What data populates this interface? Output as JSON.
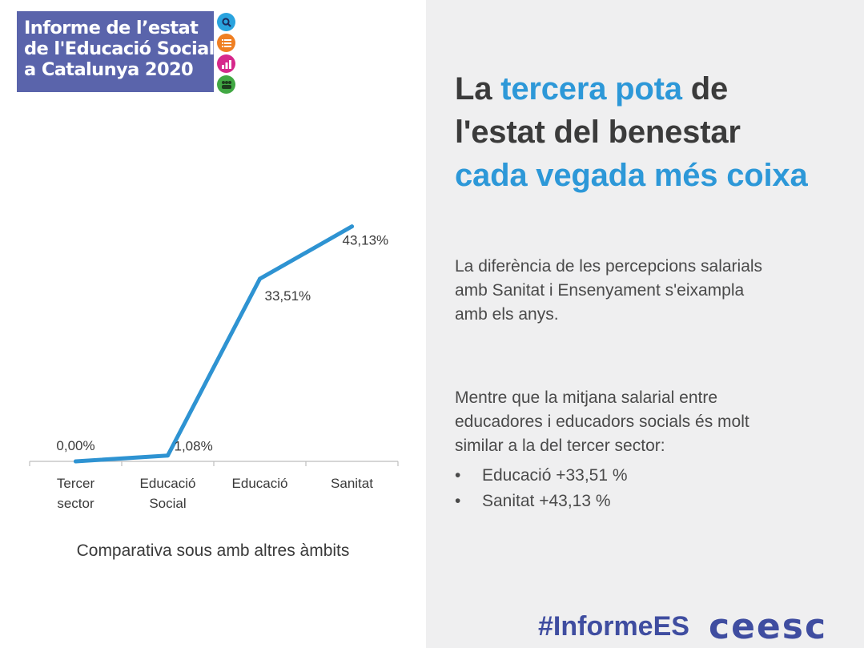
{
  "logo": {
    "title_lines": [
      "Informe de l’estat",
      "de l'Educació Social",
      "a Catalunya 2020"
    ],
    "icons": [
      {
        "name": "magnifier-icon",
        "color": "#2aa3de"
      },
      {
        "name": "list-icon",
        "color": "#ef7f22"
      },
      {
        "name": "bar-chart-icon",
        "color": "#d6288b"
      },
      {
        "name": "people-icon",
        "color": "#41a843"
      }
    ],
    "panel_color": "#5a64ab"
  },
  "headline": {
    "part1": "La ",
    "part2": "tercera pota",
    "part3": " de",
    "line2": "l'estat del benestar",
    "line3": "cada vegada més coixa"
  },
  "body": {
    "paragraph1": "La diferència de les percepcions salarials amb Sanitat i Ensenyament s'eixampla amb els anys.",
    "paragraph2": "Mentre que la mitjana salarial entre educadores i educadors socials és molt similar a la del tercer sector:",
    "bullets": [
      {
        "marker": "•",
        "text": "Educació +33,51 %"
      },
      {
        "marker": "•",
        "text": "Sanitat +43,13 %"
      }
    ]
  },
  "footer": {
    "hashtag": "#InformeES",
    "brand": "ceesc"
  },
  "chart_data": {
    "type": "line",
    "title": "",
    "caption": "Comparativa sous amb altres àmbits",
    "categories": [
      [
        "Tercer",
        "sector"
      ],
      [
        "Educació",
        "Social"
      ],
      [
        "Educació"
      ],
      [
        "Sanitat"
      ]
    ],
    "values": [
      0.0,
      1.08,
      33.51,
      43.13
    ],
    "data_labels": [
      "0,00%",
      "1,08%",
      "33,51%",
      "43,13%"
    ],
    "ylim": [
      0,
      50
    ],
    "grid": false,
    "line_color": "#2e93d2",
    "axis_color": "#bdbdbd"
  }
}
